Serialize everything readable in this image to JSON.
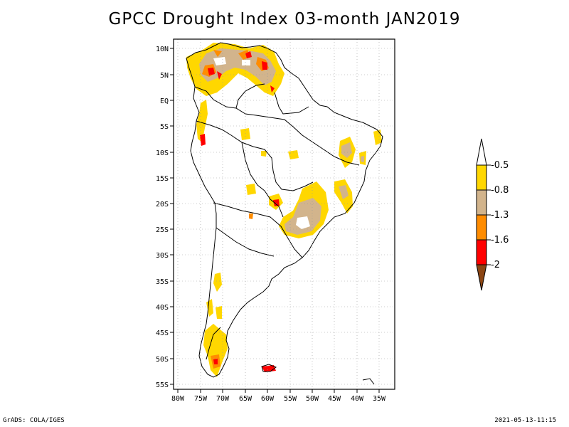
{
  "title": "GPCC Drought Index 03-month JAN2019",
  "map": {
    "lat_labels": [
      "10N",
      "5N",
      "EQ",
      "5S",
      "10S",
      "15S",
      "20S",
      "25S",
      "30S",
      "35S",
      "40S",
      "45S",
      "50S",
      "55S"
    ],
    "lon_labels": [
      "80W",
      "75W",
      "70W",
      "65W",
      "60W",
      "55W",
      "50W",
      "45W",
      "40W",
      "35W"
    ],
    "lat_range": [
      -56,
      11
    ],
    "lon_range": [
      -81,
      -34
    ],
    "grid": true
  },
  "legend": {
    "placement": "right",
    "labels": [
      "-0.5",
      "-0.8",
      "-1.3",
      "-1.6",
      "-2"
    ],
    "colors": {
      "yellow": "#ffd700",
      "tan": "#d2b48c",
      "orange": "#ff8c00",
      "red": "#ff0000",
      "brown": "#8b4513",
      "white": "#ffffff"
    }
  },
  "footer": {
    "left": "GrADS: COLA/IGES",
    "right": "2021-05-13-11:15"
  }
}
